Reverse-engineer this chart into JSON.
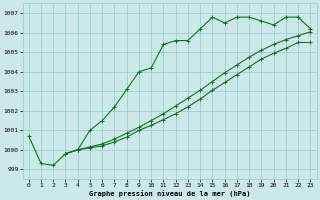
{
  "title": "Graphe pression niveau de la mer (hPa)",
  "bg_color": "#cce9e9",
  "grid_color": "#9ecfcf",
  "line_color": "#1a6b2a",
  "xlim": [
    -0.5,
    23.5
  ],
  "ylim": [
    998.5,
    1007.5
  ],
  "yticks": [
    999,
    1000,
    1001,
    1002,
    1003,
    1004,
    1005,
    1006,
    1007
  ],
  "xticks": [
    0,
    1,
    2,
    3,
    4,
    5,
    6,
    7,
    8,
    9,
    10,
    11,
    12,
    13,
    14,
    15,
    16,
    17,
    18,
    19,
    20,
    21,
    22,
    23
  ],
  "line1_x": [
    0,
    1,
    2,
    3,
    4,
    5,
    6,
    7,
    8,
    9,
    10,
    11,
    12,
    13,
    14,
    15,
    16,
    17,
    18,
    19,
    20,
    21,
    22,
    23
  ],
  "line1_y": [
    1000.7,
    999.3,
    999.2,
    999.8,
    1000.0,
    1001.0,
    1001.5,
    1002.2,
    1003.1,
    1004.0,
    1004.2,
    1005.4,
    1005.6,
    1005.6,
    1006.2,
    1006.8,
    1006.5,
    1006.8,
    1006.8,
    1006.6,
    1006.4,
    1006.8,
    1006.8,
    1006.2
  ],
  "line2_x": [
    3,
    4,
    5,
    6,
    7,
    8,
    9,
    10,
    11,
    12,
    13,
    14,
    15,
    16,
    17,
    18,
    19,
    20,
    21,
    22,
    23
  ],
  "line2_y": [
    999.8,
    1000.0,
    1000.15,
    1000.3,
    1000.55,
    1000.85,
    1001.15,
    1001.5,
    1001.85,
    1002.25,
    1002.65,
    1003.05,
    1003.5,
    1003.95,
    1004.35,
    1004.75,
    1005.1,
    1005.4,
    1005.65,
    1005.85,
    1006.05
  ],
  "line3_x": [
    3,
    4,
    5,
    6,
    7,
    8,
    9,
    10,
    11,
    12,
    13,
    14,
    15,
    16,
    17,
    18,
    19,
    20,
    21,
    22,
    23
  ],
  "line3_y": [
    999.8,
    1000.0,
    1000.1,
    1000.2,
    1000.4,
    1000.65,
    1001.0,
    1001.25,
    1001.55,
    1001.85,
    1002.2,
    1002.6,
    1003.05,
    1003.45,
    1003.85,
    1004.25,
    1004.65,
    1004.95,
    1005.2,
    1005.5,
    1005.5
  ]
}
